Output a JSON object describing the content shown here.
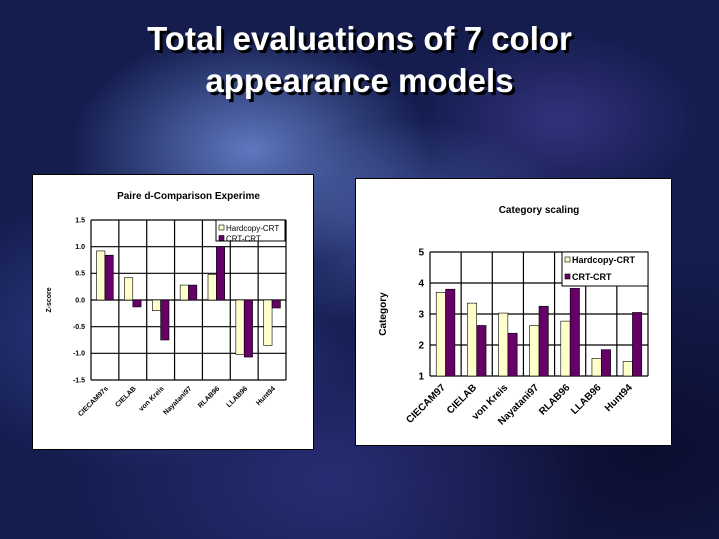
{
  "slide": {
    "title_line1": "Total evaluations of 7 color",
    "title_line2": "appearance models"
  },
  "chart_data": [
    {
      "type": "bar",
      "title": "Paire d-Comparison Experime",
      "xlabel": "",
      "ylabel": "Z-score",
      "categories": [
        "CIECAM97s",
        "CIELAB",
        "von Kreis",
        "Nayatani97",
        "RLAB96",
        "LLAB96",
        "Hunt94"
      ],
      "ylim": [
        -1.5,
        1.5
      ],
      "yticks": [
        "1.5",
        "1.0",
        "0.5",
        "0.0",
        "-0.5",
        "-1.0",
        "-1.5"
      ],
      "grid": true,
      "legend": "top-right",
      "series": [
        {
          "name": "Hardcopy-CRT",
          "color": "#ffffcc",
          "values": [
            0.92,
            0.42,
            -0.2,
            0.28,
            0.48,
            -1.02,
            -0.85
          ]
        },
        {
          "name": "CRT-CRT",
          "color": "#660066",
          "values": [
            0.84,
            -0.13,
            -0.75,
            0.28,
            1.0,
            -1.07,
            -0.15
          ]
        }
      ]
    },
    {
      "type": "bar",
      "title": "Category scaling",
      "xlabel": "",
      "ylabel": "Category",
      "categories": [
        "CIECAM97",
        "CIELAB",
        "von Kreis",
        "Nayatani97",
        "RLAB96",
        "LLAB96",
        "Hunt94"
      ],
      "ylim": [
        1,
        5
      ],
      "yticks": [
        "5",
        "4",
        "3",
        "2",
        "1"
      ],
      "grid": true,
      "legend": "top-right",
      "series": [
        {
          "name": "Hardcopy-CRT",
          "color": "#ffffcc",
          "values": [
            3.7,
            3.35,
            3.03,
            2.63,
            2.77,
            1.57,
            1.47
          ]
        },
        {
          "name": "CRT-CRT",
          "color": "#660066",
          "values": [
            3.8,
            2.63,
            2.38,
            3.25,
            3.83,
            1.85,
            3.05
          ]
        }
      ]
    }
  ]
}
